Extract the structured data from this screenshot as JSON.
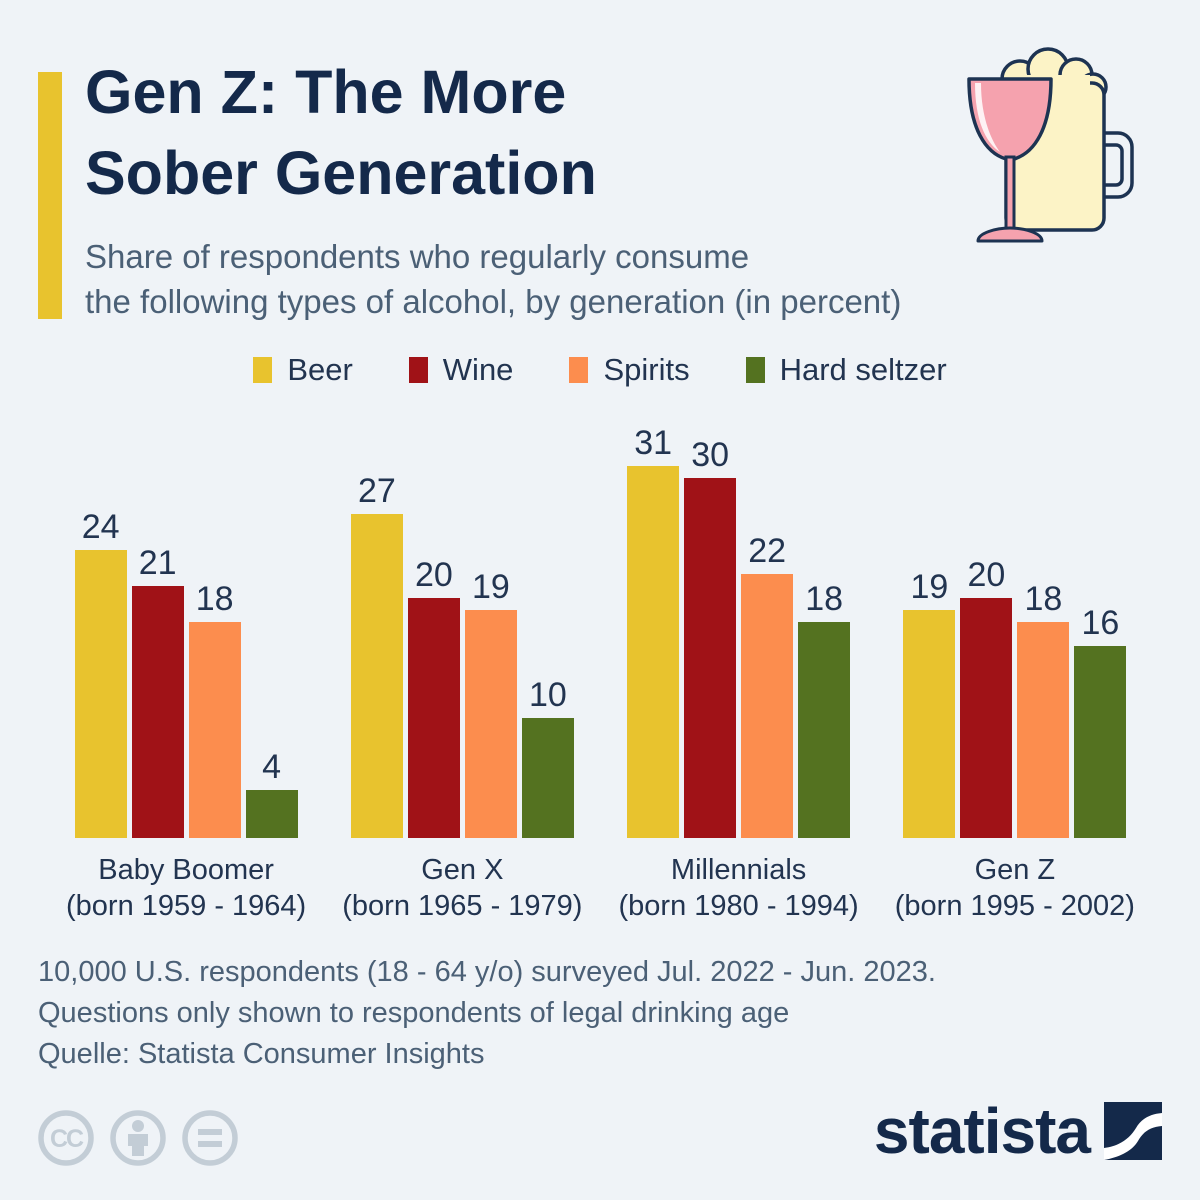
{
  "header": {
    "title_line1": "Gen Z: The More",
    "title_line2": "Sober Generation",
    "subtitle_line1": "Share of respondents who regularly consume",
    "subtitle_line2": "the following types of alcohol, by generation (in percent)"
  },
  "colors": {
    "background": "#eff3f7",
    "accent_bar": "#e8c32e",
    "title_navy": "#14294a",
    "text_slate": "#4b6076",
    "beer": "#e8c32e",
    "wine": "#a01217",
    "spirits": "#fc8d4e",
    "hard_seltzer": "#547220",
    "cc_gray": "#c3cdd6"
  },
  "chart_data": {
    "type": "bar",
    "title": "Gen Z: The More Sober Generation",
    "subtitle": "Share of respondents who regularly consume the following types of alcohol, by generation (in percent)",
    "categories": [
      {
        "label": "Baby Boomer",
        "sublabel": "(born 1959 - 1964)"
      },
      {
        "label": "Gen X",
        "sublabel": "(born 1965 - 1979)"
      },
      {
        "label": "Millennials",
        "sublabel": "(born 1980 - 1994)"
      },
      {
        "label": "Gen Z",
        "sublabel": "(born 1995 - 2002)"
      }
    ],
    "series": [
      {
        "name": "Beer",
        "color": "#e8c32e",
        "values": [
          24,
          27,
          31,
          19
        ]
      },
      {
        "name": "Wine",
        "color": "#a01217",
        "values": [
          21,
          20,
          30,
          20
        ]
      },
      {
        "name": "Spirits",
        "color": "#fc8d4e",
        "values": [
          18,
          19,
          22,
          18
        ]
      },
      {
        "name": "Hard seltzer",
        "color": "#547220",
        "values": [
          4,
          10,
          18,
          16
        ]
      }
    ],
    "ylim": [
      0,
      31
    ],
    "value_labels": true,
    "legend_position": "top",
    "grid": false,
    "xlabel": "",
    "ylabel": ""
  },
  "footer": {
    "note_line1": "10,000 U.S. respondents (18 - 64 y/o) surveyed Jul. 2022 - Jun. 2023.",
    "note_line2": "Questions only shown to respondents of legal drinking age",
    "source": "Quelle: Statista Consumer Insights"
  },
  "branding": {
    "logo_text": "statista",
    "license_icons": [
      "cc",
      "by",
      "nd"
    ]
  },
  "icons": {
    "header_icon": "wine-glass-and-beer-mug-icon"
  }
}
